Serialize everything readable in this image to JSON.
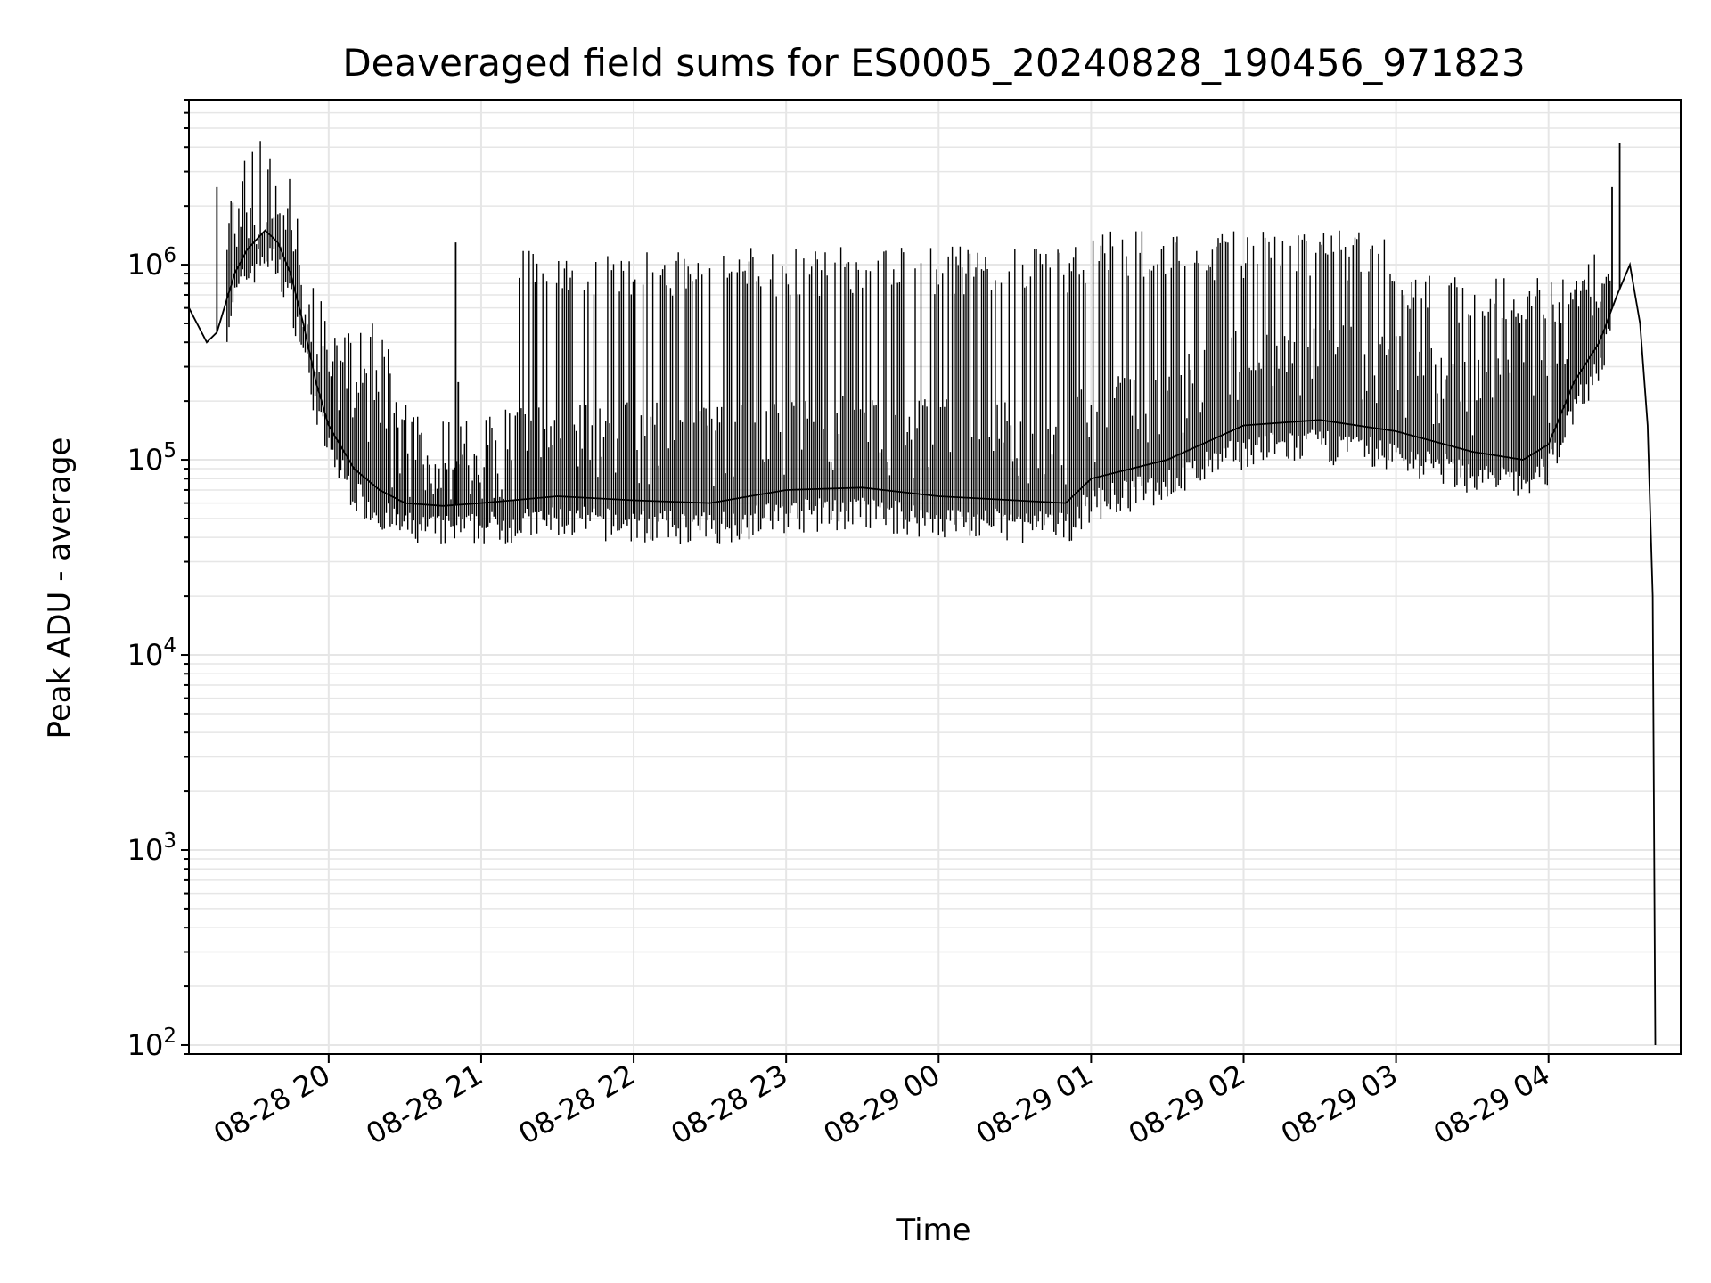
{
  "chart_data": {
    "type": "line",
    "title": "Deaveraged field sums for ES0005_20240828_190456_971823",
    "xlabel": "Time",
    "ylabel": "Peak ADU - average",
    "yscale": "log",
    "ylim": [
      90,
      7000000
    ],
    "xlim": [
      "2024-08-28 19:05",
      "2024-08-29 04:52"
    ],
    "x_tick_labels": [
      "08-28 20",
      "08-28 21",
      "08-28 22",
      "08-28 23",
      "08-29 00",
      "08-29 01",
      "08-29 02",
      "08-29 03",
      "08-29 04"
    ],
    "y_tick_labels": [
      {
        "base": "10",
        "exp": "2"
      },
      {
        "base": "10",
        "exp": "3"
      },
      {
        "base": "10",
        "exp": "4"
      },
      {
        "base": "10",
        "exp": "5"
      },
      {
        "base": "10",
        "exp": "6"
      }
    ],
    "grid": true,
    "line_color": "#000000",
    "grid_color": "#e6e6e6",
    "series": [
      {
        "x": [
          "2024-08-28 19:05",
          "2024-08-28 19:12",
          "2024-08-28 19:16",
          "2024-08-28 19:23",
          "2024-08-28 19:28",
          "2024-08-28 19:35",
          "2024-08-28 19:40",
          "2024-08-28 19:45",
          "2024-08-28 19:50",
          "2024-08-28 19:55",
          "2024-08-28 20:00",
          "2024-08-28 20:10",
          "2024-08-28 20:20",
          "2024-08-28 20:30",
          "2024-08-28 20:45",
          "2024-08-28 21:00",
          "2024-08-28 21:30",
          "2024-08-28 22:00",
          "2024-08-28 22:30",
          "2024-08-28 23:00",
          "2024-08-28 23:30",
          "2024-08-29 00:00",
          "2024-08-29 00:30",
          "2024-08-29 00:50",
          "2024-08-29 01:00",
          "2024-08-29 01:30",
          "2024-08-29 02:00",
          "2024-08-29 02:30",
          "2024-08-29 03:00",
          "2024-08-29 03:30",
          "2024-08-29 03:50",
          "2024-08-29 04:00",
          "2024-08-29 04:10",
          "2024-08-29 04:20",
          "2024-08-29 04:27",
          "2024-08-29 04:32",
          "2024-08-29 04:36",
          "2024-08-29 04:39",
          "2024-08-29 04:41",
          "2024-08-29 04:42"
        ],
        "y": [
          600000,
          400000,
          450000,
          900000,
          1200000,
          1500000,
          1300000,
          900000,
          500000,
          250000,
          150000,
          90000,
          70000,
          60000,
          58000,
          60000,
          65000,
          62000,
          60000,
          70000,
          72000,
          65000,
          62000,
          60000,
          80000,
          100000,
          150000,
          160000,
          140000,
          110000,
          100000,
          120000,
          250000,
          400000,
          700000,
          1000000,
          500000,
          150000,
          20000,
          100
        ]
      }
    ],
    "bands": [
      {
        "x0": "2024-08-28 19:20",
        "x1": "2024-08-28 19:50",
        "top": 2000000
      },
      {
        "x0": "2024-08-28 19:50",
        "x1": "2024-08-28 20:25",
        "top": 500000
      },
      {
        "x0": "2024-08-28 20:25",
        "x1": "2024-08-28 21:15",
        "top": 110000
      },
      {
        "x0": "2024-08-28 21:15",
        "x1": "2024-08-28 22:40",
        "top": 1250000
      },
      {
        "x0": "2024-08-28 22:40",
        "x1": "2024-08-29 00:10",
        "top": 1250000
      },
      {
        "x0": "2024-08-29 00:10",
        "x1": "2024-08-29 01:00",
        "top": 1250000
      },
      {
        "x0": "2024-08-29 01:00",
        "x1": "2024-08-29 02:00",
        "top": 1500000
      },
      {
        "x0": "2024-08-29 02:00",
        "x1": "2024-08-29 03:00",
        "top": 1500000
      },
      {
        "x0": "2024-08-29 03:00",
        "x1": "2024-08-29 04:25",
        "top": 900000
      }
    ],
    "spikes": [
      {
        "x": "2024-08-28 19:16",
        "y": 2500000
      },
      {
        "x": "2024-08-28 20:50",
        "y": 1300000
      },
      {
        "x": "2024-08-28 20:51",
        "y": 250000
      },
      {
        "x": "2024-08-29 04:25",
        "y": 2500000
      },
      {
        "x": "2024-08-29 04:28",
        "y": 4200000
      }
    ]
  }
}
